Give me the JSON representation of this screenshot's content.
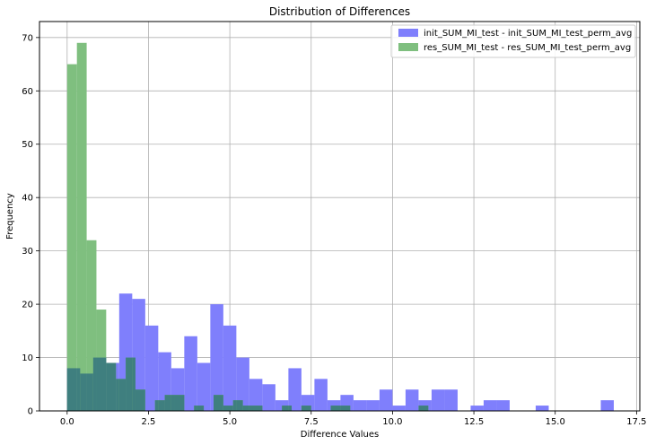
{
  "chart_data": {
    "type": "histogram",
    "title": "Distribution of Differences",
    "xlabel": "Difference Values",
    "ylabel": "Frequency",
    "xlim": [
      -0.85,
      17.6
    ],
    "ylim": [
      0,
      73
    ],
    "xticks": [
      0.0,
      2.5,
      5.0,
      7.5,
      10.0,
      12.5,
      15.0,
      17.5
    ],
    "xtick_labels": [
      "0.0",
      "2.5",
      "5.0",
      "7.5",
      "10.0",
      "12.5",
      "15.0",
      "17.5"
    ],
    "yticks": [
      0,
      10,
      20,
      30,
      40,
      50,
      60,
      70
    ],
    "ytick_labels": [
      "0",
      "10",
      "20",
      "30",
      "40",
      "50",
      "60",
      "70"
    ],
    "grid": true,
    "legend_position": "top-right",
    "series": [
      {
        "name": "init_SUM_MI_test - init_SUM_MI_test_perm_avg",
        "color": "#7f7ffc",
        "bin_start": 0.0,
        "bin_width": 0.4,
        "counts": [
          8,
          7,
          10,
          9,
          22,
          21,
          16,
          11,
          8,
          14,
          9,
          20,
          16,
          10,
          6,
          5,
          2,
          8,
          3,
          6,
          2,
          3,
          2,
          2,
          4,
          1,
          4,
          2,
          4,
          4,
          0,
          1,
          2,
          2,
          0,
          0,
          1,
          0,
          0,
          0,
          0,
          2
        ]
      },
      {
        "name": "res_SUM_MI_test - res_SUM_MI_test_perm_avg",
        "color": "#7fbf7f",
        "bin_start": 0.0,
        "bin_width": 0.3,
        "counts": [
          65,
          69,
          32,
          19,
          9,
          6,
          10,
          4,
          0,
          2,
          3,
          3,
          0,
          1,
          0,
          3,
          1,
          2,
          1,
          1,
          0,
          0,
          1,
          0,
          1,
          0,
          0,
          1,
          1,
          0,
          0,
          0,
          0,
          0,
          0,
          0,
          1,
          0,
          0,
          0,
          0,
          0,
          0,
          0,
          0,
          0,
          0,
          0,
          0,
          0,
          0,
          0,
          0,
          0,
          0
        ]
      }
    ],
    "overlap_color": "#3f7f7f",
    "legend_sample_colors": [
      "#7f7ffc",
      "#7fbf7f"
    ]
  }
}
